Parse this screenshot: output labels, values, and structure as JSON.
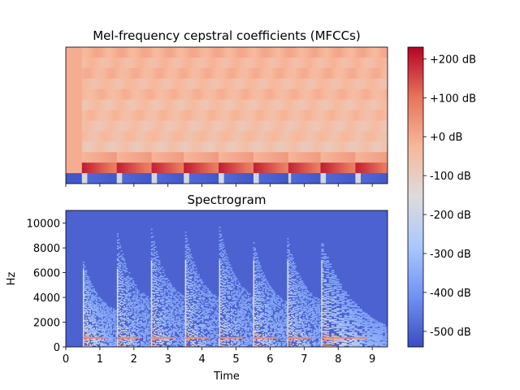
{
  "chart_data": [
    {
      "type": "heatmap",
      "title": "Mel-frequency cepstral coefficients (MFCCs)",
      "xlim": [
        0,
        9.45
      ],
      "n_coefficients": 13,
      "notes_onsets_s": [
        0.5,
        1.5,
        2.5,
        3.5,
        4.5,
        5.5,
        6.5,
        7.5
      ],
      "x_ticks_visible": [
        0,
        1,
        2,
        3,
        4,
        5,
        6,
        7,
        8,
        9
      ],
      "x_tick_labels_shown": false,
      "colormap": "coolwarm"
    },
    {
      "type": "heatmap",
      "title": "Spectrogram",
      "xlabel": "Time",
      "ylabel": "Hz",
      "xlim": [
        0,
        9.45
      ],
      "ylim": [
        0,
        11025
      ],
      "x_ticks": [
        0,
        1,
        2,
        3,
        4,
        5,
        6,
        7,
        8,
        9
      ],
      "y_ticks": [
        0,
        2000,
        4000,
        6000,
        8000,
        10000
      ],
      "notes_onsets_s": [
        0.5,
        1.5,
        2.5,
        3.5,
        4.5,
        5.5,
        6.5,
        7.5
      ],
      "colormap": "coolwarm"
    }
  ],
  "colorbar": {
    "min_db": -540,
    "max_db": 230,
    "ticks": [
      {
        "value": 200,
        "label": "+200 dB"
      },
      {
        "value": 100,
        "label": "+100 dB"
      },
      {
        "value": 0,
        "label": "+0 dB"
      },
      {
        "value": -100,
        "label": "-100 dB"
      },
      {
        "value": -200,
        "label": "-200 dB"
      },
      {
        "value": -300,
        "label": "-300 dB"
      },
      {
        "value": -400,
        "label": "-400 dB"
      },
      {
        "value": -500,
        "label": "-500 dB"
      }
    ],
    "colors": [
      "#3b4cc0",
      "#6f92f3",
      "#aac7fd",
      "#dddcdc",
      "#f7b89c",
      "#e7745b",
      "#b40426"
    ]
  }
}
